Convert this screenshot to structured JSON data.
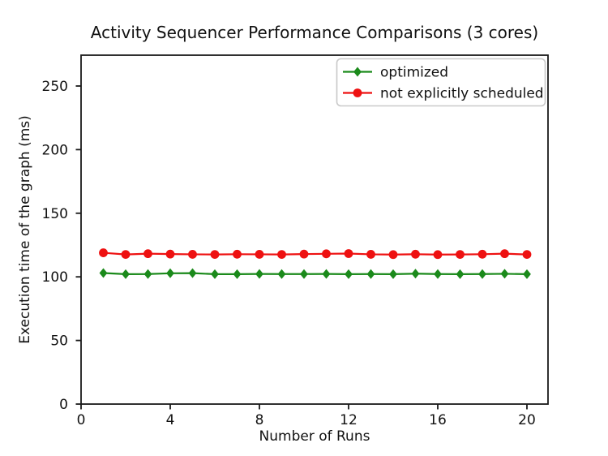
{
  "chart_data": {
    "type": "line",
    "title": "Activity Sequencer Performance Comparisons (3 cores)",
    "xlabel": "Number of Runs",
    "ylabel": "Execution time of the graph (ms)",
    "xlim": [
      0,
      21
    ],
    "ylim": [
      0,
      274
    ],
    "xticks": [
      0,
      4,
      8,
      12,
      16,
      20
    ],
    "yticks": [
      0,
      50,
      100,
      150,
      200,
      250
    ],
    "grid": false,
    "legend_position": "upper right",
    "background_color": "#ffffff",
    "axis_color": "#1a1a1a",
    "legend_border_color": "#c9c9c9",
    "x": [
      1,
      2,
      3,
      4,
      5,
      6,
      7,
      8,
      9,
      10,
      11,
      12,
      13,
      14,
      15,
      16,
      17,
      18,
      19,
      20
    ],
    "series": [
      {
        "name": "optimized",
        "color": "#1b8a1b",
        "marker": "diamond",
        "values": [
          103.0,
          102.1,
          102.2,
          102.8,
          102.9,
          102.1,
          102.1,
          102.3,
          102.2,
          102.2,
          102.3,
          102.1,
          102.2,
          102.1,
          102.5,
          102.2,
          102.1,
          102.2,
          102.4,
          102.1
        ]
      },
      {
        "name": "not explicitly scheduled",
        "color": "#ee1111",
        "marker": "circle",
        "values": [
          118.9,
          117.6,
          118.2,
          117.9,
          117.7,
          117.6,
          117.8,
          117.7,
          117.6,
          117.9,
          118.1,
          118.3,
          117.7,
          117.5,
          117.8,
          117.5,
          117.6,
          117.8,
          118.2,
          117.6
        ]
      }
    ]
  }
}
